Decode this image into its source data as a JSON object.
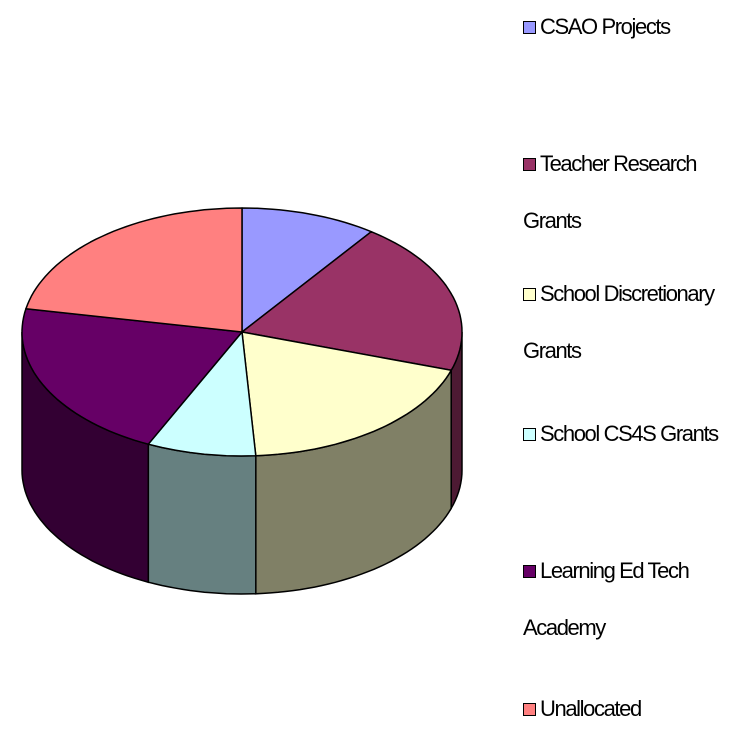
{
  "chart_data": {
    "type": "pie3d",
    "categories": [
      "CSAO Projects",
      "Teacher Research Grants",
      "School Discretionary Grants",
      "School CS4S Grants",
      "Learning Ed Tech Academy",
      "Unallocated"
    ],
    "values": [
      10,
      20,
      19,
      8,
      21,
      22
    ],
    "colors": [
      "#9999ff",
      "#993366",
      "#ffffcc",
      "#ccffff",
      "#660066",
      "#ff8080"
    ],
    "legend": "right"
  }
}
